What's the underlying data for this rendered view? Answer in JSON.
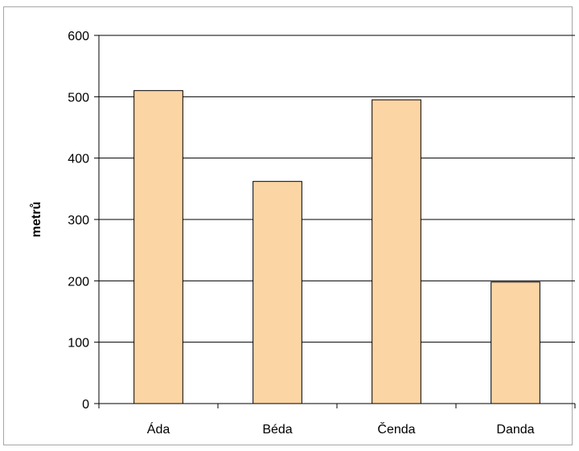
{
  "chart_data": {
    "type": "bar",
    "title": "",
    "xlabel": "",
    "ylabel": "metrů",
    "categories": [
      "Áda",
      "Béda",
      "Čenda",
      "Danda"
    ],
    "values": [
      510,
      362,
      495,
      198
    ],
    "ylim": [
      0,
      600
    ],
    "yticks": [
      0,
      100,
      200,
      300,
      400,
      500,
      600
    ],
    "grid": true,
    "legend": "none",
    "colors": {
      "bar_fill": "#fcd5a4",
      "bar_stroke": "#000000",
      "gridline": "#000000",
      "axis": "#000000",
      "frame": "#a6a6a6"
    }
  }
}
